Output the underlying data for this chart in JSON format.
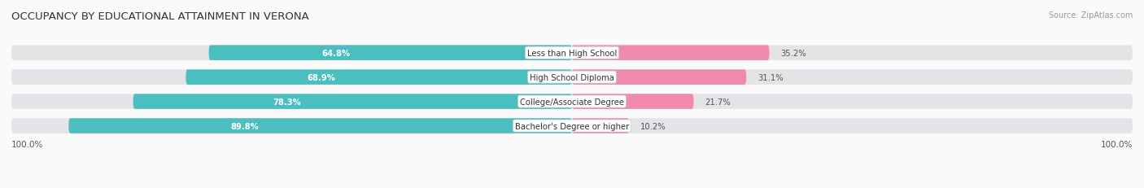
{
  "title": "OCCUPANCY BY EDUCATIONAL ATTAINMENT IN VERONA",
  "source": "Source: ZipAtlas.com",
  "categories": [
    "Less than High School",
    "High School Diploma",
    "College/Associate Degree",
    "Bachelor's Degree or higher"
  ],
  "owner_values": [
    64.8,
    68.9,
    78.3,
    89.8
  ],
  "renter_values": [
    35.2,
    31.1,
    21.7,
    10.2
  ],
  "owner_color": "#4BBFBF",
  "renter_color": "#F08BAE",
  "bar_bg_color": "#E4E4E8",
  "row_bg_color": "#EDEDF0",
  "background_color": "#FAFAFA",
  "title_fontsize": 9.5,
  "label_fontsize": 7.2,
  "value_fontsize": 7.2,
  "tick_fontsize": 7.5,
  "source_fontsize": 7,
  "legend_fontsize": 8,
  "axis_label_left": "100.0%",
  "axis_label_right": "100.0%"
}
